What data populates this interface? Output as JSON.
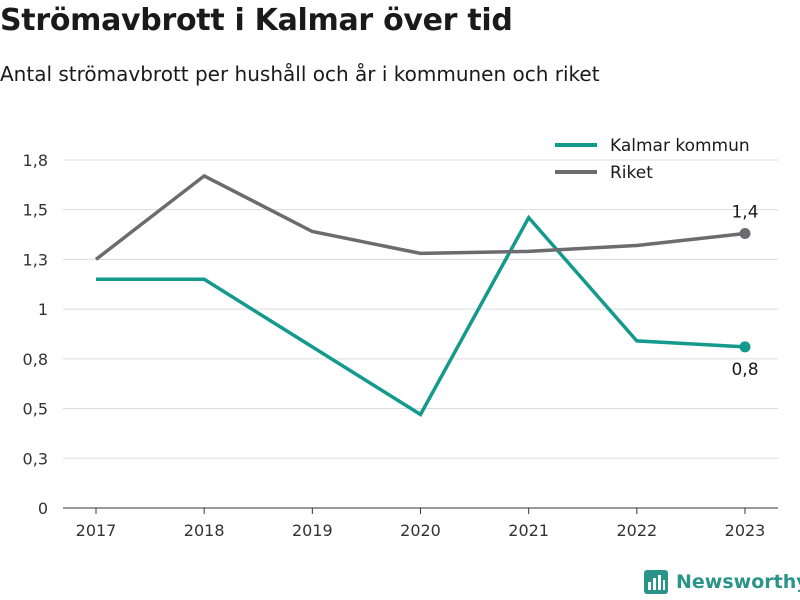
{
  "title": "Strömavbrott i Kalmar över tid",
  "subtitle": "Antal strömavbrott per hushåll och år i kommunen och riket",
  "brand": "Newsworthy",
  "chart_data": {
    "type": "line",
    "x": [
      "2017",
      "2018",
      "2019",
      "2020",
      "2021",
      "2022",
      "2023"
    ],
    "ylim": [
      0,
      1.8
    ],
    "yticks": [
      {
        "value": 0,
        "label": "0"
      },
      {
        "value": 0.25,
        "label": "0,3"
      },
      {
        "value": 0.5,
        "label": "0,5"
      },
      {
        "value": 0.75,
        "label": "0,8"
      },
      {
        "value": 1.0,
        "label": "1"
      },
      {
        "value": 1.25,
        "label": "1,3"
      },
      {
        "value": 1.5,
        "label": "1,5"
      },
      {
        "value": 1.75,
        "label": "1,8"
      }
    ],
    "grid": true,
    "legend_position": "top-right",
    "series": [
      {
        "name": "Kalmar kommun",
        "color": "#149a8c",
        "values": [
          1.15,
          1.15,
          0.81,
          0.47,
          1.46,
          0.84,
          0.81
        ],
        "end_label": "0,8"
      },
      {
        "name": "Riket",
        "color": "#6b6b70",
        "values": [
          1.25,
          1.67,
          1.39,
          1.28,
          1.29,
          1.32,
          1.38
        ],
        "end_label": "1,4"
      }
    ]
  }
}
